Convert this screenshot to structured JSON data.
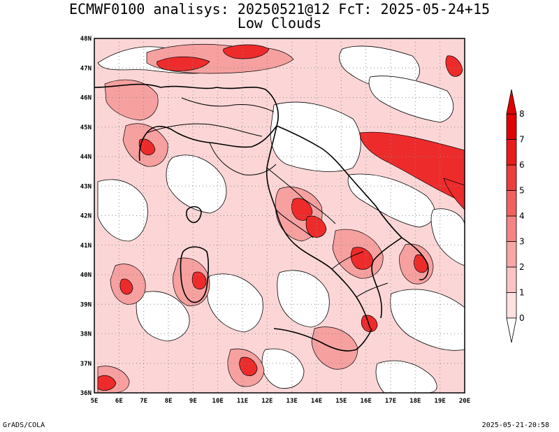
{
  "title": {
    "line1": "ECMWF0100 analisys: 20250521@12 FcT: 2025-05-24+15",
    "line2": "Low Clouds"
  },
  "map": {
    "lon_ticks": [
      "5E",
      "6E",
      "7E",
      "8E",
      "9E",
      "10E",
      "11E",
      "12E",
      "13E",
      "14E",
      "15E",
      "16E",
      "17E",
      "18E",
      "19E",
      "20E"
    ],
    "lat_ticks": [
      "36N",
      "37N",
      "38N",
      "39N",
      "40N",
      "41N",
      "42N",
      "43N",
      "44N",
      "45N",
      "46N",
      "47N",
      "48N"
    ],
    "lon_range": [
      5,
      20
    ],
    "lat_range": [
      36,
      48
    ],
    "grid": "dotted"
  },
  "colorbar": {
    "labels": [
      "0",
      "1",
      "2",
      "3",
      "4",
      "5",
      "6",
      "7",
      "8"
    ],
    "colors": [
      "#ffffff",
      "#fde0e0",
      "#fbc4c4",
      "#f8a6a6",
      "#f58585",
      "#f26161",
      "#ee3d3d",
      "#e81a1a",
      "#e00000"
    ]
  },
  "footer": {
    "left": "GrADS/COLA",
    "right": "2025-05-21-20:58"
  }
}
